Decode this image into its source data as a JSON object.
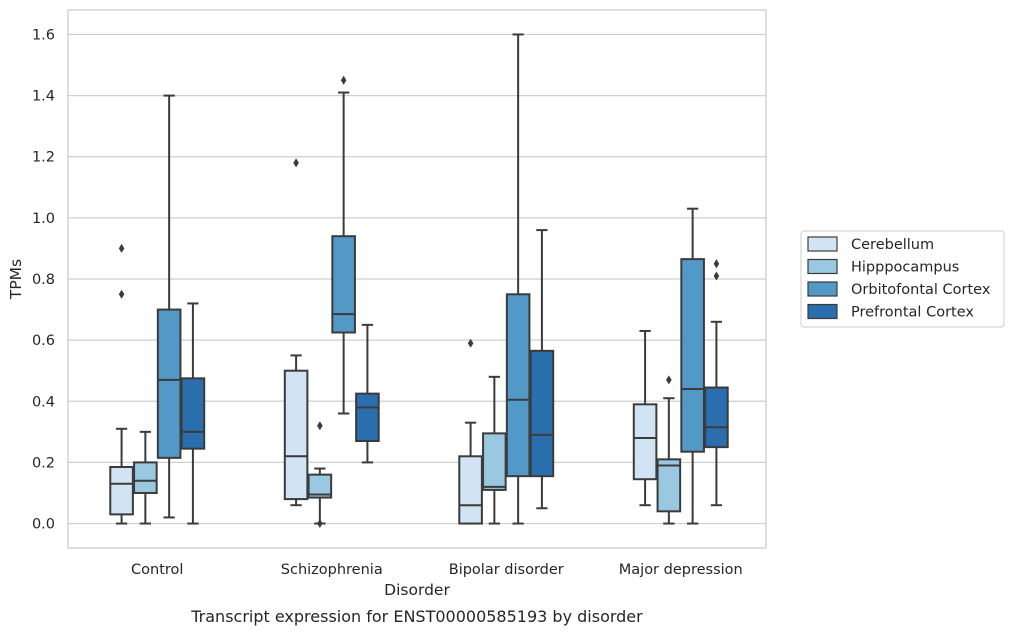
{
  "chart_data": {
    "type": "box",
    "caption": "Transcript expression for ENST00000585193 by disorder",
    "xlabel": "Disorder",
    "ylabel": "TPMs",
    "ylim": [
      -0.08,
      1.68
    ],
    "yticks": [
      0.0,
      0.2,
      0.4,
      0.6,
      0.8,
      1.0,
      1.2,
      1.4,
      1.6
    ],
    "ytick_labels": [
      "0.0",
      "0.2",
      "0.4",
      "0.6",
      "0.8",
      "1.0",
      "1.2",
      "1.4",
      "1.6"
    ],
    "grid": true,
    "legend_position": "right",
    "categories": [
      "Control",
      "Schizophrenia",
      "Bipolar disorder",
      "Major depression"
    ],
    "series": [
      {
        "name": "Cerebellum",
        "color": "#d2e3f3",
        "boxes": [
          {
            "whisker_low": 0.0,
            "q1": 0.03,
            "median": 0.13,
            "q3": 0.185,
            "whisker_high": 0.31,
            "outliers": [
              0.75,
              0.9
            ]
          },
          {
            "whisker_low": 0.06,
            "q1": 0.08,
            "median": 0.22,
            "q3": 0.5,
            "whisker_high": 0.55,
            "outliers": [
              1.18
            ]
          },
          {
            "whisker_low": 0.0,
            "q1": 0.0,
            "median": 0.06,
            "q3": 0.22,
            "whisker_high": 0.33,
            "outliers": [
              0.59
            ]
          },
          {
            "whisker_low": 0.06,
            "q1": 0.145,
            "median": 0.28,
            "q3": 0.39,
            "whisker_high": 0.63,
            "outliers": []
          }
        ]
      },
      {
        "name": "Hipppocampus",
        "color": "#9ac8e0",
        "boxes": [
          {
            "whisker_low": 0.0,
            "q1": 0.1,
            "median": 0.14,
            "q3": 0.2,
            "whisker_high": 0.3,
            "outliers": []
          },
          {
            "whisker_low": 0.0,
            "q1": 0.085,
            "median": 0.095,
            "q3": 0.16,
            "whisker_high": 0.18,
            "outliers": [
              0.32,
              0.0
            ]
          },
          {
            "whisker_low": 0.0,
            "q1": 0.11,
            "median": 0.12,
            "q3": 0.295,
            "whisker_high": 0.48,
            "outliers": []
          },
          {
            "whisker_low": 0.0,
            "q1": 0.04,
            "median": 0.19,
            "q3": 0.21,
            "whisker_high": 0.41,
            "outliers": [
              0.47
            ]
          }
        ]
      },
      {
        "name": "Orbitofontal Cortex",
        "color": "#5299c8",
        "boxes": [
          {
            "whisker_low": 0.02,
            "q1": 0.215,
            "median": 0.47,
            "q3": 0.7,
            "whisker_high": 1.4,
            "outliers": []
          },
          {
            "whisker_low": 0.36,
            "q1": 0.625,
            "median": 0.685,
            "q3": 0.94,
            "whisker_high": 1.41,
            "outliers": [
              1.45
            ]
          },
          {
            "whisker_low": 0.0,
            "q1": 0.155,
            "median": 0.405,
            "q3": 0.75,
            "whisker_high": 1.6,
            "outliers": []
          },
          {
            "whisker_low": 0.0,
            "q1": 0.235,
            "median": 0.44,
            "q3": 0.865,
            "whisker_high": 1.03,
            "outliers": []
          }
        ]
      },
      {
        "name": "Prefrontal Cortex",
        "color": "#2a6ead",
        "boxes": [
          {
            "whisker_low": 0.0,
            "q1": 0.245,
            "median": 0.3,
            "q3": 0.475,
            "whisker_high": 0.72,
            "outliers": []
          },
          {
            "whisker_low": 0.2,
            "q1": 0.27,
            "median": 0.38,
            "q3": 0.425,
            "whisker_high": 0.65,
            "outliers": []
          },
          {
            "whisker_low": 0.05,
            "q1": 0.155,
            "median": 0.29,
            "q3": 0.565,
            "whisker_high": 0.96,
            "outliers": []
          },
          {
            "whisker_low": 0.06,
            "q1": 0.25,
            "median": 0.315,
            "q3": 0.445,
            "whisker_high": 0.66,
            "outliers": [
              0.81,
              0.85
            ]
          }
        ]
      }
    ],
    "colors": {
      "line": "#3b3b3b",
      "grid": "#cfcfcf",
      "frame": "#cccccc"
    }
  }
}
